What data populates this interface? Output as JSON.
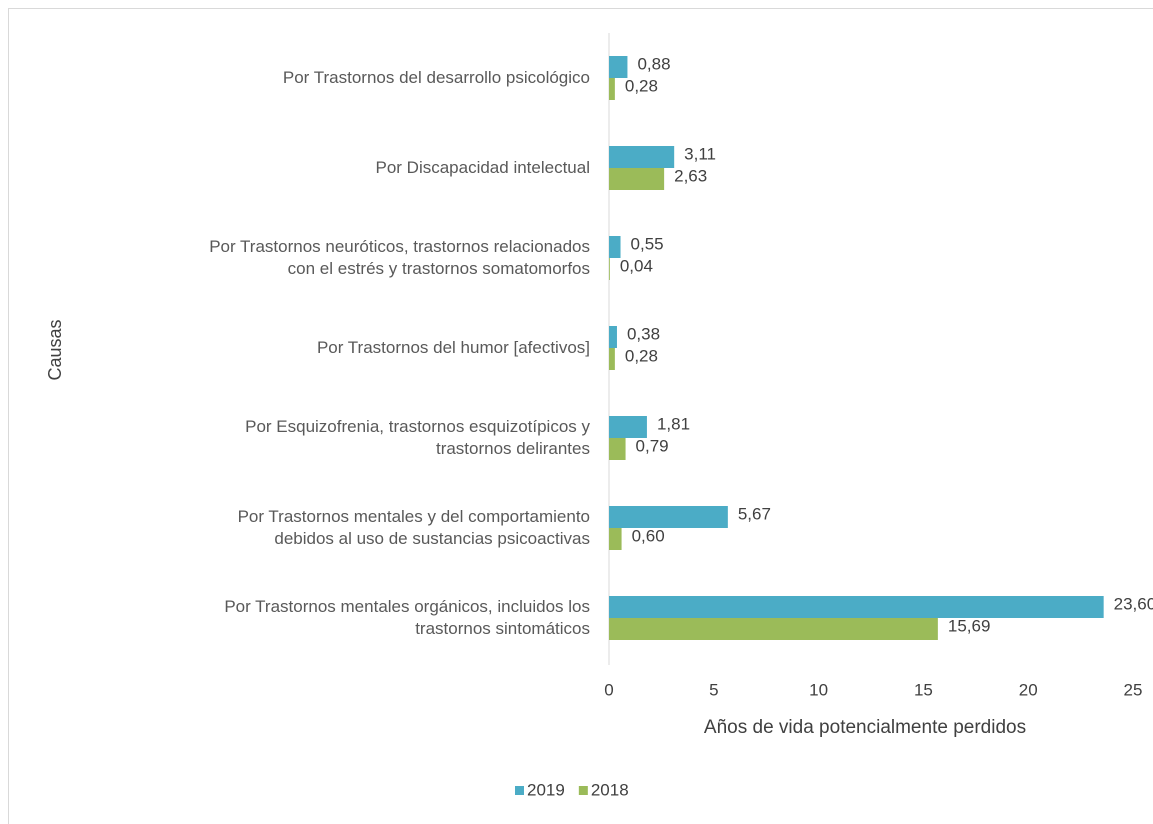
{
  "chart_data": {
    "type": "bar",
    "orientation": "horizontal",
    "x_label": "Años de vida potencialmente perdidos",
    "y_label": "Causas",
    "categories": [
      "Por  Trastornos del desarrollo psicológico",
      "Por  Discapacidad intelectual",
      "Por  Trastornos neuróticos, trastornos relacionados\ncon el estrés y trastornos somatomorfos",
      "Por  Trastornos del humor [afectivos]",
      "Por  Esquizofrenia, trastornos esquizotípicos y\ntrastornos delirantes",
      "Por  Trastornos mentales y del comportamiento\ndebidos al uso de sustancias psicoactivas",
      "Por  Trastornos mentales orgánicos, incluidos los\ntrastornos sintomáticos"
    ],
    "series": [
      {
        "name": "2019",
        "color": "#4bacc6",
        "values": [
          0.88,
          3.11,
          0.55,
          0.38,
          1.81,
          5.67,
          23.6
        ],
        "value_labels": [
          "0,88",
          "3,11",
          "0,55",
          "0,38",
          "1,81",
          "5,67",
          "23,60"
        ]
      },
      {
        "name": "2018",
        "color": "#9bbb59",
        "values": [
          0.28,
          2.63,
          0.04,
          0.28,
          0.79,
          0.6,
          15.69
        ],
        "value_labels": [
          "0,28",
          "2,63",
          "0,04",
          "0,28",
          "0,79",
          "0,60",
          "15,69"
        ]
      }
    ],
    "xlim": [
      0,
      25
    ],
    "xticks": [
      0,
      5,
      10,
      15,
      20,
      25
    ],
    "legend": "bottom",
    "grid": false
  }
}
